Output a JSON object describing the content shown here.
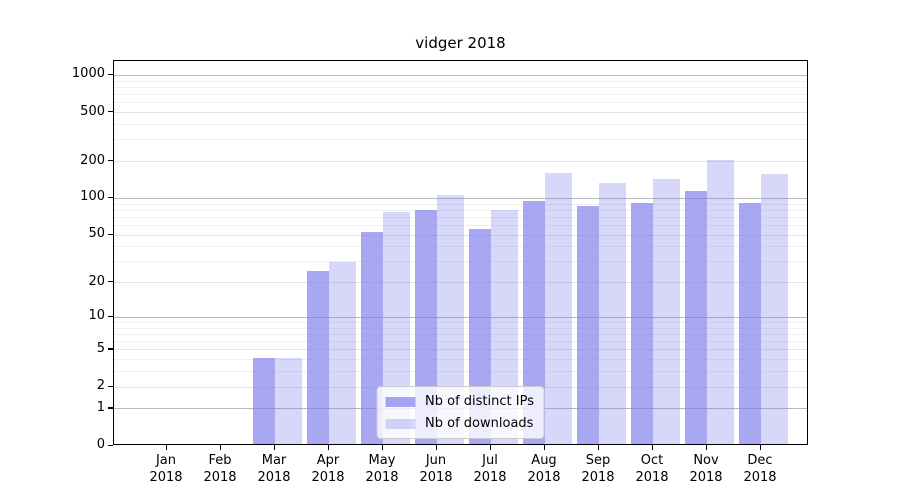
{
  "chart_data": {
    "type": "bar",
    "title": "vidger 2018",
    "x_tick_labels": [
      {
        "month": "Jan",
        "year": "2018"
      },
      {
        "month": "Feb",
        "year": "2018"
      },
      {
        "month": "Mar",
        "year": "2018"
      },
      {
        "month": "Apr",
        "year": "2018"
      },
      {
        "month": "May",
        "year": "2018"
      },
      {
        "month": "Jun",
        "year": "2018"
      },
      {
        "month": "Jul",
        "year": "2018"
      },
      {
        "month": "Aug",
        "year": "2018"
      },
      {
        "month": "Sep",
        "year": "2018"
      },
      {
        "month": "Oct",
        "year": "2018"
      },
      {
        "month": "Nov",
        "year": "2018"
      },
      {
        "month": "Dec",
        "year": "2018"
      }
    ],
    "series": [
      {
        "name": "Nb of distinct IPs",
        "color": "#7a7aeb",
        "alpha": 0.66,
        "values": [
          0,
          0,
          4,
          24,
          51,
          77,
          54,
          92,
          83,
          88,
          110,
          89
        ]
      },
      {
        "name": "Nb of downloads",
        "color": "#7a7aeb",
        "alpha": 0.3,
        "values": [
          0,
          0,
          4,
          29,
          75,
          102,
          78,
          155,
          130,
          139,
          197,
          153
        ]
      }
    ],
    "y_axis": {
      "scale": "log1p",
      "ticks": [
        0,
        1,
        2,
        5,
        10,
        20,
        50,
        100,
        200,
        500,
        1000
      ]
    },
    "legend_position": "lower center",
    "grid": true,
    "grid_colors": {
      "decade": "#b9b9b9",
      "major": "#e4e4e4",
      "minor": "#f0f0f0"
    }
  }
}
